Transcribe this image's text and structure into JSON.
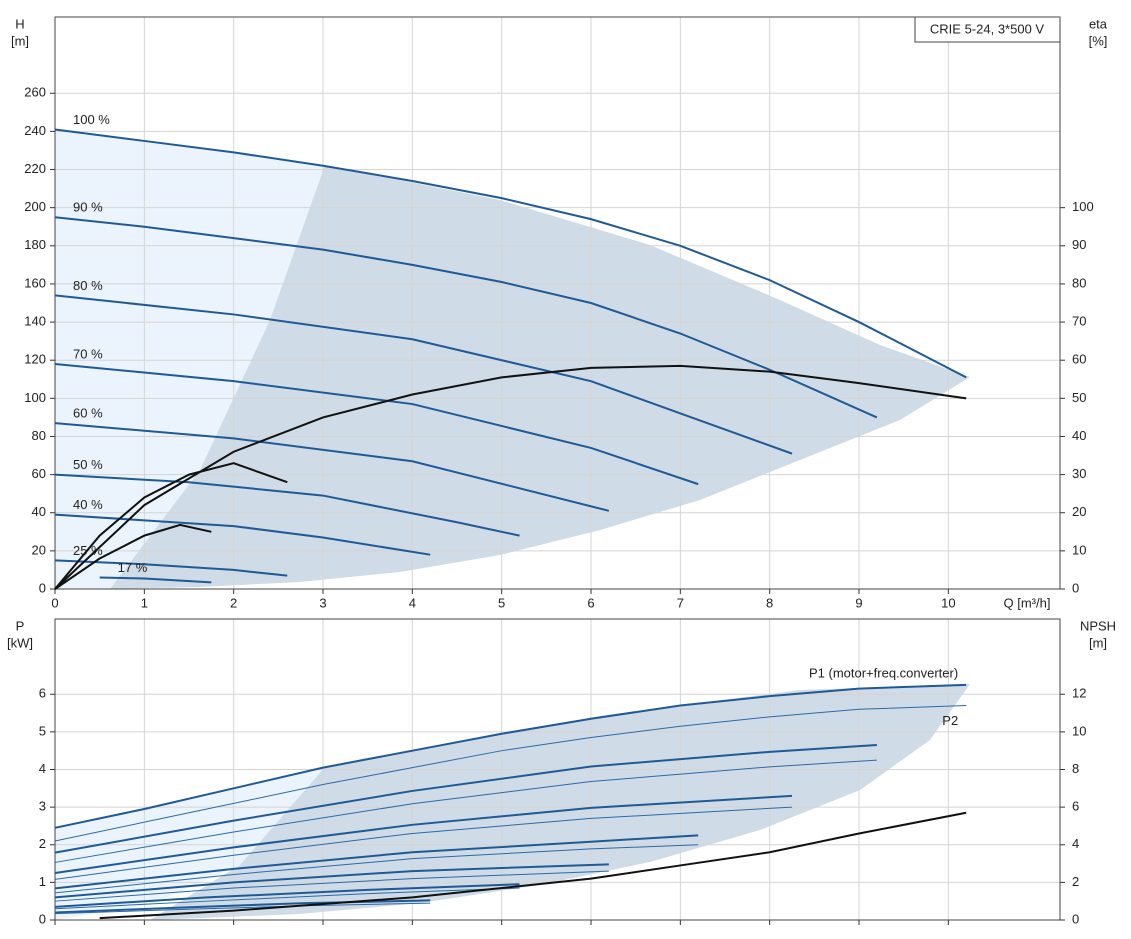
{
  "chart_data": [
    {
      "type": "line",
      "annotation": "CRIE 5-24, 3*500 V",
      "ylabel": [
        "H",
        "[m]"
      ],
      "y2label": [
        "eta",
        "[%]"
      ],
      "xlabel": "Q [m³/h]",
      "xlim": [
        0,
        11.25
      ],
      "xticks": [
        0,
        1,
        2,
        3,
        4,
        5,
        6,
        7,
        8,
        9,
        10
      ],
      "ylim": [
        0,
        300
      ],
      "yticks": [
        0,
        20,
        40,
        60,
        80,
        100,
        120,
        140,
        160,
        180,
        200,
        220,
        240,
        260
      ],
      "y2lim": [
        0,
        150
      ],
      "y2ticks": [
        0,
        10,
        20,
        30,
        40,
        50,
        60,
        70,
        80,
        90,
        100
      ],
      "grid": true,
      "series": [
        {
          "name": "100 %",
          "color": "#1f5a96",
          "line_width": 2,
          "x": [
            0,
            1,
            2,
            3,
            4,
            5,
            6,
            7,
            8,
            9,
            10.2
          ],
          "values": [
            241,
            235,
            229,
            222,
            214,
            205,
            194,
            180,
            162,
            140,
            111
          ]
        },
        {
          "name": "90 %",
          "color": "#1f5a96",
          "line_width": 2,
          "x": [
            0,
            1,
            2,
            3,
            4,
            5,
            6,
            7,
            8,
            9.2
          ],
          "values": [
            195,
            190,
            184,
            178,
            170,
            161,
            150,
            134,
            115,
            90
          ]
        },
        {
          "name": "80 %",
          "color": "#1f5a96",
          "line_width": 2,
          "x": [
            0,
            2,
            4,
            6,
            8.25
          ],
          "values": [
            154,
            144,
            131,
            109,
            71
          ]
        },
        {
          "name": "70 %",
          "color": "#1f5a96",
          "line_width": 2,
          "x": [
            0,
            2,
            4,
            6,
            7.2
          ],
          "values": [
            118,
            109,
            97,
            74,
            55
          ]
        },
        {
          "name": "60 %",
          "color": "#1f5a96",
          "line_width": 2,
          "x": [
            0,
            2,
            4,
            6.2
          ],
          "values": [
            87,
            79,
            67,
            41
          ]
        },
        {
          "name": "50 %",
          "color": "#1f5a96",
          "line_width": 2,
          "x": [
            0,
            1.5,
            3,
            4.5,
            5.2
          ],
          "values": [
            60,
            56,
            49,
            35,
            28
          ]
        },
        {
          "name": "40 %",
          "color": "#1f5a96",
          "line_width": 2,
          "x": [
            0,
            1,
            2,
            3,
            4.2
          ],
          "values": [
            39,
            36,
            33,
            27,
            18
          ]
        },
        {
          "name": "25 %",
          "color": "#1f5a96",
          "line_width": 2,
          "x": [
            0,
            1,
            2,
            2.6
          ],
          "values": [
            15,
            13,
            10,
            7
          ]
        },
        {
          "name": "17 %",
          "color": "#1f5a96",
          "line_width": 2,
          "x": [
            0.5,
            1,
            1.75
          ],
          "values": [
            6,
            5.5,
            3.5
          ]
        },
        {
          "axis": "y2",
          "color": "#111111",
          "line_width": 2,
          "x": [
            0,
            1,
            2,
            3,
            4,
            5,
            6,
            7,
            8,
            9,
            10.2
          ],
          "values": [
            0,
            22,
            36,
            45,
            51,
            55.5,
            58,
            58.5,
            57,
            54,
            50
          ]
        },
        {
          "axis": "y2",
          "color": "#111111",
          "line_width": 2,
          "x": [
            0,
            0.5,
            1,
            1.5,
            2,
            2.6
          ],
          "values": [
            0,
            14,
            24,
            30,
            33,
            28
          ]
        },
        {
          "axis": "y2",
          "color": "#111111",
          "line_width": 2,
          "x": [
            0,
            0.5,
            1,
            1.4,
            1.75
          ],
          "values": [
            0,
            8,
            14,
            16.8,
            15
          ]
        }
      ]
    },
    {
      "type": "line",
      "ylabel": [
        "P",
        "[kW]"
      ],
      "y2label": [
        "NPSH",
        "[m]"
      ],
      "xlim": [
        0,
        11.25
      ],
      "xticks": [
        0,
        1,
        2,
        3,
        4,
        5,
        6,
        7,
        8,
        9,
        10
      ],
      "xtick_labels": false,
      "ylim": [
        0,
        8
      ],
      "yticks": [
        0,
        1,
        2,
        3,
        4,
        5,
        6
      ],
      "y2lim": [
        0,
        16
      ],
      "y2ticks": [
        0,
        2,
        4,
        6,
        8,
        10,
        12
      ],
      "grid": true,
      "series": [
        {
          "name": "P1 (motor+freq.converter)",
          "color": "#1f5a96",
          "line_width": 2,
          "x": [
            0,
            1,
            2,
            3,
            4,
            5,
            6,
            7,
            8,
            9,
            10.2
          ],
          "values": [
            2.45,
            2.95,
            3.5,
            4.05,
            4.5,
            4.95,
            5.35,
            5.7,
            5.95,
            6.15,
            6.25
          ]
        },
        {
          "color": "#1f5a96",
          "line_width": 2,
          "x": [
            0,
            2,
            4,
            6,
            8,
            9.2
          ],
          "values": [
            1.79,
            2.64,
            3.43,
            4.08,
            4.47,
            4.65
          ]
        },
        {
          "color": "#1f5a96",
          "line_width": 2,
          "x": [
            0,
            2,
            4,
            6,
            8.25
          ],
          "values": [
            1.25,
            1.93,
            2.53,
            2.98,
            3.3
          ]
        },
        {
          "color": "#1f5a96",
          "line_width": 2,
          "x": [
            0,
            2,
            4,
            6,
            7.2
          ],
          "values": [
            0.84,
            1.36,
            1.8,
            2.08,
            2.25
          ]
        },
        {
          "color": "#1f5a96",
          "line_width": 2,
          "x": [
            0,
            2,
            4,
            6.2
          ],
          "values": [
            0.6,
            1.0,
            1.3,
            1.48
          ]
        },
        {
          "color": "#1f5a96",
          "line_width": 2,
          "x": [
            0,
            1.7,
            3.5,
            5.2
          ],
          "values": [
            0.35,
            0.6,
            0.8,
            0.95
          ]
        },
        {
          "color": "#1f5a96",
          "line_width": 2,
          "x": [
            0,
            1.4,
            2.8,
            4.2
          ],
          "values": [
            0.2,
            0.33,
            0.45,
            0.52
          ]
        },
        {
          "name": "P2",
          "color": "#2a6aa8",
          "line_width": 1,
          "x": [
            0,
            1,
            2,
            3,
            4,
            5,
            6,
            7,
            8,
            9,
            10.2
          ],
          "values": [
            2.1,
            2.6,
            3.1,
            3.6,
            4.05,
            4.5,
            4.85,
            5.15,
            5.4,
            5.6,
            5.7
          ]
        },
        {
          "color": "#2a6aa8",
          "line_width": 1,
          "x": [
            0,
            2,
            4,
            6,
            8,
            9.2
          ],
          "values": [
            1.53,
            2.34,
            3.09,
            3.68,
            4.07,
            4.25
          ]
        },
        {
          "color": "#2a6aa8",
          "line_width": 1,
          "x": [
            0,
            2,
            4,
            6,
            8.25
          ],
          "values": [
            1.08,
            1.72,
            2.3,
            2.7,
            3.0
          ]
        },
        {
          "color": "#2a6aa8",
          "line_width": 1,
          "x": [
            0,
            2,
            4,
            6,
            7.2
          ],
          "values": [
            0.72,
            1.21,
            1.63,
            1.89,
            2.0
          ]
        },
        {
          "color": "#2a6aa8",
          "line_width": 1,
          "x": [
            0,
            2,
            4,
            6.2
          ],
          "values": [
            0.5,
            0.85,
            1.1,
            1.3
          ]
        },
        {
          "color": "#2a6aa8",
          "line_width": 1,
          "x": [
            0,
            1.7,
            3.5,
            5.2
          ],
          "values": [
            0.3,
            0.5,
            0.7,
            0.85
          ]
        },
        {
          "color": "#2a6aa8",
          "line_width": 1,
          "x": [
            0,
            1.4,
            2.8,
            4.2
          ],
          "values": [
            0.17,
            0.28,
            0.38,
            0.45
          ]
        },
        {
          "axis": "y2",
          "color": "#111111",
          "line_width": 2,
          "x": [
            0.5,
            2,
            4,
            6,
            7,
            8,
            9,
            10.2
          ],
          "values": [
            0.1,
            0.5,
            1.2,
            2.2,
            2.9,
            3.6,
            4.6,
            5.7
          ]
        }
      ]
    }
  ]
}
